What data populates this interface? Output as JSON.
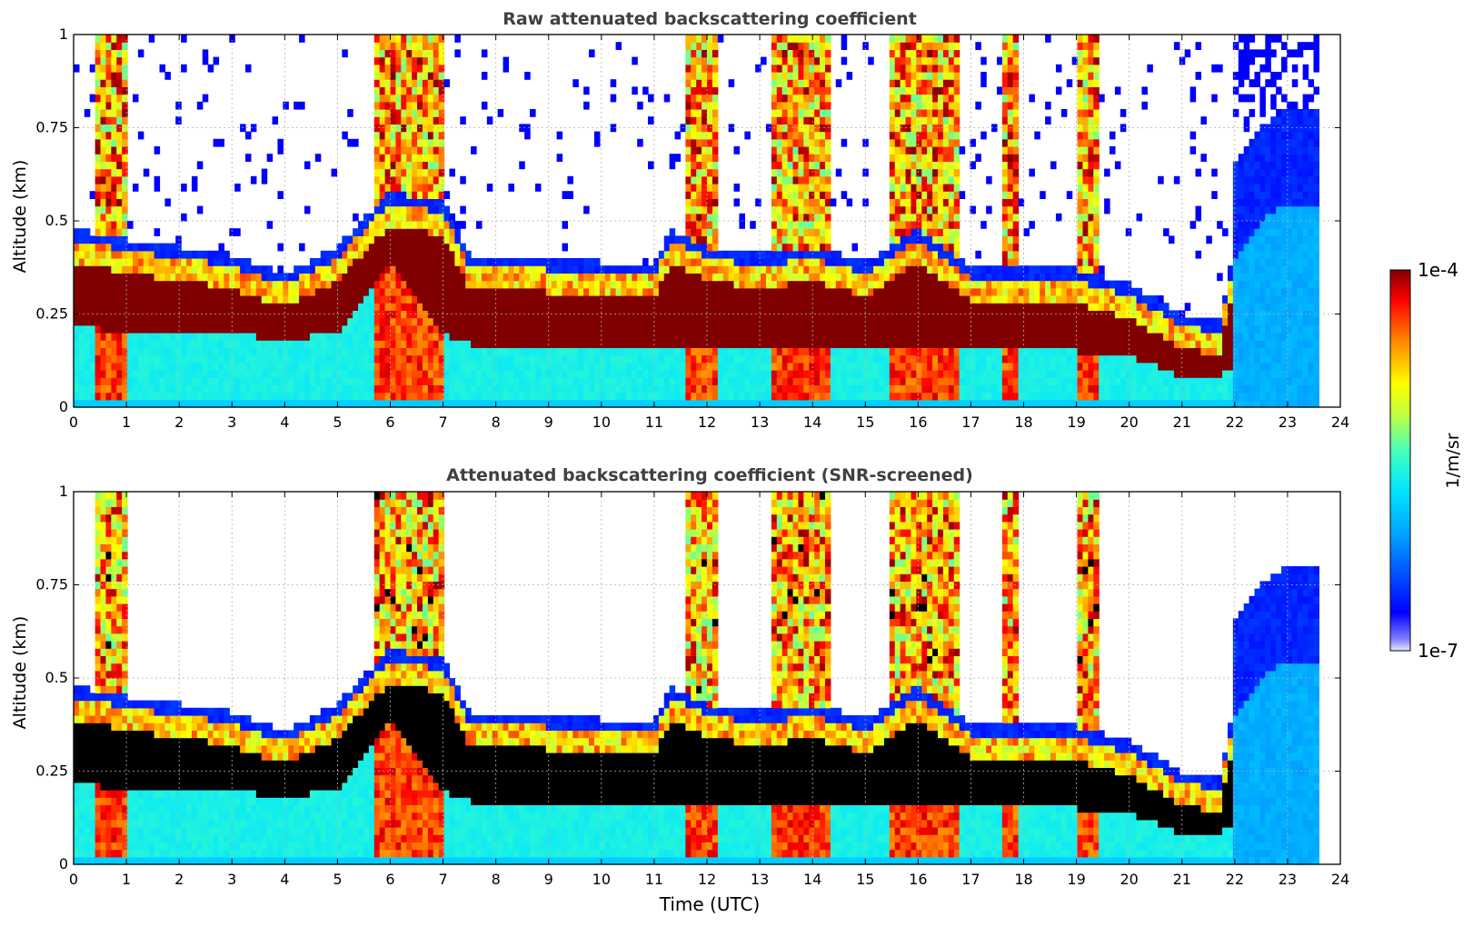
{
  "figure": {
    "xlabel": "Time (UTC)",
    "colorbar": {
      "label": "1/m/sr",
      "max_label": "1e-4",
      "min_label": "1e-7",
      "scale": "log",
      "range": [
        1e-07,
        0.0001
      ],
      "colormap": "jet",
      "low_color": "#e6e6fa",
      "high_color": "#800000"
    }
  },
  "chart_data": [
    {
      "type": "heatmap",
      "title": "Raw attenuated backscattering coefficient",
      "xlabel": "",
      "ylabel": "Altitude (km)",
      "xlim": [
        0,
        24
      ],
      "ylim": [
        0,
        1
      ],
      "x_ticks": [
        "0",
        "1",
        "2",
        "3",
        "4",
        "5",
        "6",
        "7",
        "8",
        "9",
        "10",
        "11",
        "12",
        "13",
        "14",
        "15",
        "16",
        "17",
        "18",
        "19",
        "20",
        "21",
        "22",
        "23",
        "24"
      ],
      "y_ticks": [
        "0",
        "0.25",
        "0.5",
        "0.75",
        "1"
      ],
      "grid": true,
      "data_extent_hours": [
        0,
        23.6
      ],
      "layer_top_km": [
        [
          0,
          0.45
        ],
        [
          1,
          0.42
        ],
        [
          2,
          0.4
        ],
        [
          3,
          0.38
        ],
        [
          4,
          0.33
        ],
        [
          5,
          0.4
        ],
        [
          6,
          0.55
        ],
        [
          7,
          0.52
        ],
        [
          7.5,
          0.38
        ],
        [
          8,
          0.38
        ],
        [
          9,
          0.37
        ],
        [
          10,
          0.36
        ],
        [
          11,
          0.35
        ],
        [
          11.3,
          0.45
        ],
        [
          12,
          0.4
        ],
        [
          13,
          0.38
        ],
        [
          14,
          0.4
        ],
        [
          15,
          0.36
        ],
        [
          16,
          0.45
        ],
        [
          17,
          0.35
        ],
        [
          18,
          0.35
        ],
        [
          19,
          0.34
        ],
        [
          20,
          0.3
        ],
        [
          21,
          0.22
        ],
        [
          21.7,
          0.2
        ],
        [
          22,
          0.4
        ],
        [
          22.5,
          0.5
        ],
        [
          23,
          0.55
        ],
        [
          23.6,
          0.55
        ]
      ],
      "layer_bottom_km": [
        [
          0,
          0.22
        ],
        [
          1,
          0.2
        ],
        [
          2,
          0.2
        ],
        [
          3,
          0.2
        ],
        [
          4,
          0.18
        ],
        [
          5,
          0.2
        ],
        [
          6,
          0.4
        ],
        [
          7,
          0.2
        ],
        [
          7.5,
          0.17
        ],
        [
          9,
          0.17
        ],
        [
          11,
          0.17
        ],
        [
          12,
          0.17
        ],
        [
          14,
          0.17
        ],
        [
          16,
          0.17
        ],
        [
          17,
          0.17
        ],
        [
          19,
          0.15
        ],
        [
          20,
          0.14
        ],
        [
          21,
          0.08
        ],
        [
          21.7,
          0.08
        ],
        [
          22,
          0.12
        ]
      ],
      "high_cloud_periods_hours": [
        [
          0.4,
          1.0
        ],
        [
          5.7,
          7.0
        ],
        [
          11.6,
          12.2
        ],
        [
          13.2,
          14.3
        ],
        [
          15.5,
          16.8
        ],
        [
          17.6,
          17.9
        ],
        [
          19.0,
          19.4
        ]
      ],
      "noise_region_hours": [
        22.0,
        23.6
      ]
    },
    {
      "type": "heatmap",
      "title": "Attenuated backscattering coefficient (SNR-screened)",
      "xlabel": "Time (UTC)",
      "ylabel": "Altitude (km)",
      "xlim": [
        0,
        24
      ],
      "ylim": [
        0,
        1
      ],
      "x_ticks": [
        "0",
        "1",
        "2",
        "3",
        "4",
        "5",
        "6",
        "7",
        "8",
        "9",
        "10",
        "11",
        "12",
        "13",
        "14",
        "15",
        "16",
        "17",
        "18",
        "19",
        "20",
        "21",
        "22",
        "23",
        "24"
      ],
      "y_ticks": [
        "0",
        "0.25",
        "0.5",
        "0.75",
        "1"
      ],
      "grid": true,
      "data_extent_hours": [
        0,
        23.6
      ],
      "saturated_color": "#000000",
      "layer_top_km": [
        [
          0,
          0.45
        ],
        [
          1,
          0.42
        ],
        [
          2,
          0.4
        ],
        [
          3,
          0.38
        ],
        [
          4,
          0.33
        ],
        [
          5,
          0.4
        ],
        [
          6,
          0.55
        ],
        [
          7,
          0.52
        ],
        [
          7.5,
          0.38
        ],
        [
          8,
          0.38
        ],
        [
          9,
          0.37
        ],
        [
          10,
          0.36
        ],
        [
          11,
          0.35
        ],
        [
          11.3,
          0.45
        ],
        [
          12,
          0.4
        ],
        [
          13,
          0.38
        ],
        [
          14,
          0.4
        ],
        [
          15,
          0.36
        ],
        [
          16,
          0.45
        ],
        [
          17,
          0.35
        ],
        [
          18,
          0.35
        ],
        [
          19,
          0.34
        ],
        [
          20,
          0.3
        ],
        [
          21,
          0.22
        ],
        [
          21.7,
          0.2
        ],
        [
          22,
          0.4
        ],
        [
          22.5,
          0.5
        ],
        [
          23,
          0.55
        ],
        [
          23.6,
          0.55
        ]
      ],
      "layer_bottom_km": [
        [
          0,
          0.22
        ],
        [
          1,
          0.2
        ],
        [
          2,
          0.2
        ],
        [
          3,
          0.2
        ],
        [
          4,
          0.18
        ],
        [
          5,
          0.2
        ],
        [
          6,
          0.4
        ],
        [
          7,
          0.2
        ],
        [
          7.5,
          0.17
        ],
        [
          9,
          0.17
        ],
        [
          11,
          0.17
        ],
        [
          12,
          0.17
        ],
        [
          14,
          0.17
        ],
        [
          16,
          0.17
        ],
        [
          17,
          0.17
        ],
        [
          19,
          0.15
        ],
        [
          20,
          0.14
        ],
        [
          21,
          0.08
        ],
        [
          21.7,
          0.08
        ],
        [
          22,
          0.12
        ]
      ],
      "high_cloud_periods_hours": [
        [
          0.4,
          1.0
        ],
        [
          5.7,
          7.0
        ],
        [
          11.6,
          12.2
        ],
        [
          13.2,
          14.3
        ],
        [
          15.5,
          16.8
        ],
        [
          17.6,
          17.9
        ],
        [
          19.0,
          19.4
        ]
      ],
      "noise_region_hours": [
        22.0,
        23.6
      ]
    }
  ]
}
